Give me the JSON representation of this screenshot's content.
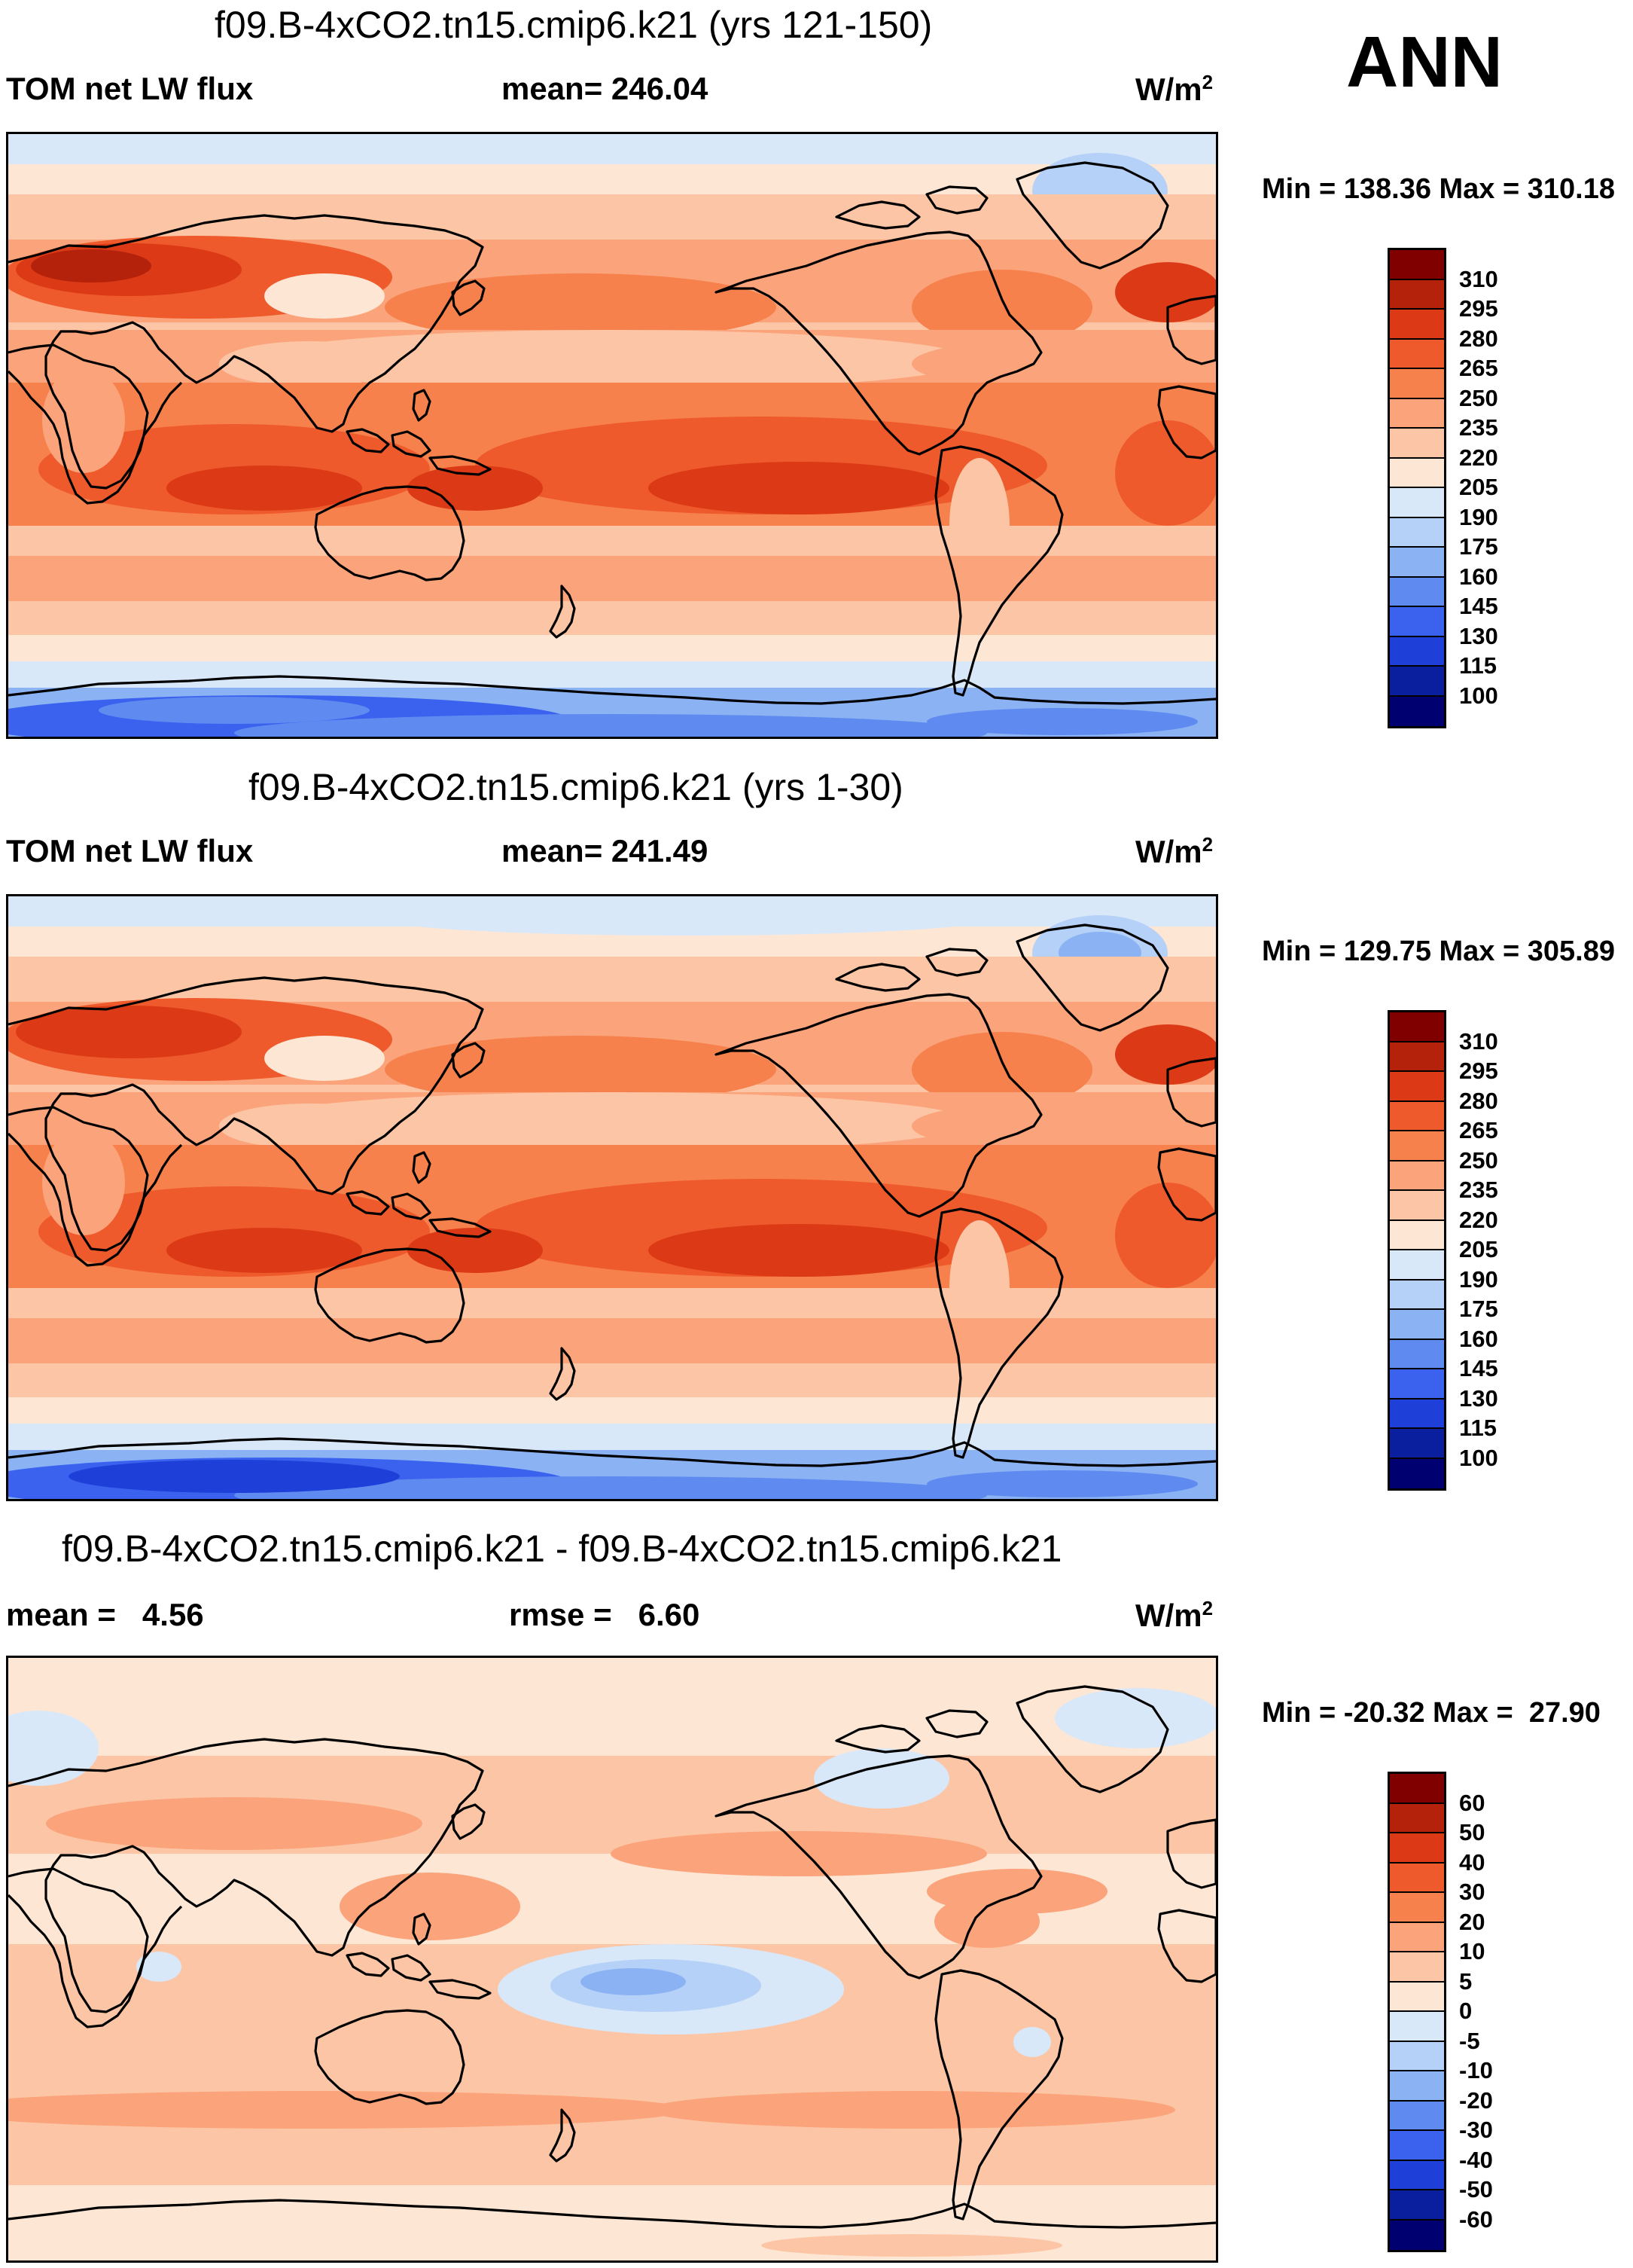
{
  "header": {
    "season": "ANN"
  },
  "panels": [
    {
      "title": "f09.B-4xCO2.tn15.cmip6.k21 (yrs 121-150)",
      "left_label": "TOM net LW flux",
      "center_label": "mean= 246.04",
      "units": "W/m",
      "units_exp": "2",
      "minmax": "Min = 138.36 Max = 310.18",
      "map_kind": "absolute_late",
      "colorbar": {
        "labels": [
          "310",
          "295",
          "280",
          "265",
          "250",
          "235",
          "220",
          "205",
          "190",
          "175",
          "160",
          "145",
          "130",
          "115",
          "100"
        ],
        "colors": [
          "#800000",
          "#b4220c",
          "#dc3a16",
          "#ee5a2c",
          "#f6814c",
          "#fba37a",
          "#fcc6a6",
          "#fee6d4",
          "#d8e8f8",
          "#b5d1f7",
          "#8bb2f3",
          "#5f8bf0",
          "#3a62ef",
          "#1e3fd8",
          "#0a1f9e",
          "#000070"
        ]
      }
    },
    {
      "title": "f09.B-4xCO2.tn15.cmip6.k21 (yrs 1-30)",
      "left_label": "TOM net LW flux",
      "center_label": "mean= 241.49",
      "units": "W/m",
      "units_exp": "2",
      "minmax": "Min = 129.75 Max = 305.89",
      "map_kind": "absolute_early",
      "colorbar": {
        "labels": [
          "310",
          "295",
          "280",
          "265",
          "250",
          "235",
          "220",
          "205",
          "190",
          "175",
          "160",
          "145",
          "130",
          "115",
          "100"
        ],
        "colors": [
          "#800000",
          "#b4220c",
          "#dc3a16",
          "#ee5a2c",
          "#f6814c",
          "#fba37a",
          "#fcc6a6",
          "#fee6d4",
          "#d8e8f8",
          "#b5d1f7",
          "#8bb2f3",
          "#5f8bf0",
          "#3a62ef",
          "#1e3fd8",
          "#0a1f9e",
          "#000070"
        ]
      }
    },
    {
      "title": "f09.B-4xCO2.tn15.cmip6.k21 - f09.B-4xCO2.tn15.cmip6.k21",
      "left_label": "mean =   4.56",
      "center_label": "rmse =   6.60",
      "units": "W/m",
      "units_exp": "2",
      "minmax": "Min = -20.32 Max =  27.90",
      "map_kind": "difference",
      "colorbar": {
        "labels": [
          "60",
          "50",
          "40",
          "30",
          "20",
          "10",
          "5",
          "0",
          "-5",
          "-10",
          "-20",
          "-30",
          "-40",
          "-50",
          "-60"
        ],
        "colors": [
          "#800000",
          "#b4220c",
          "#dc3a16",
          "#ee5a2c",
          "#f6814c",
          "#fba37a",
          "#fcc6a6",
          "#fee6d4",
          "#d8e8f8",
          "#b5d1f7",
          "#8bb2f3",
          "#5f8bf0",
          "#3a62ef",
          "#1e3fd8",
          "#0a1f9e",
          "#000070"
        ]
      }
    }
  ]
}
